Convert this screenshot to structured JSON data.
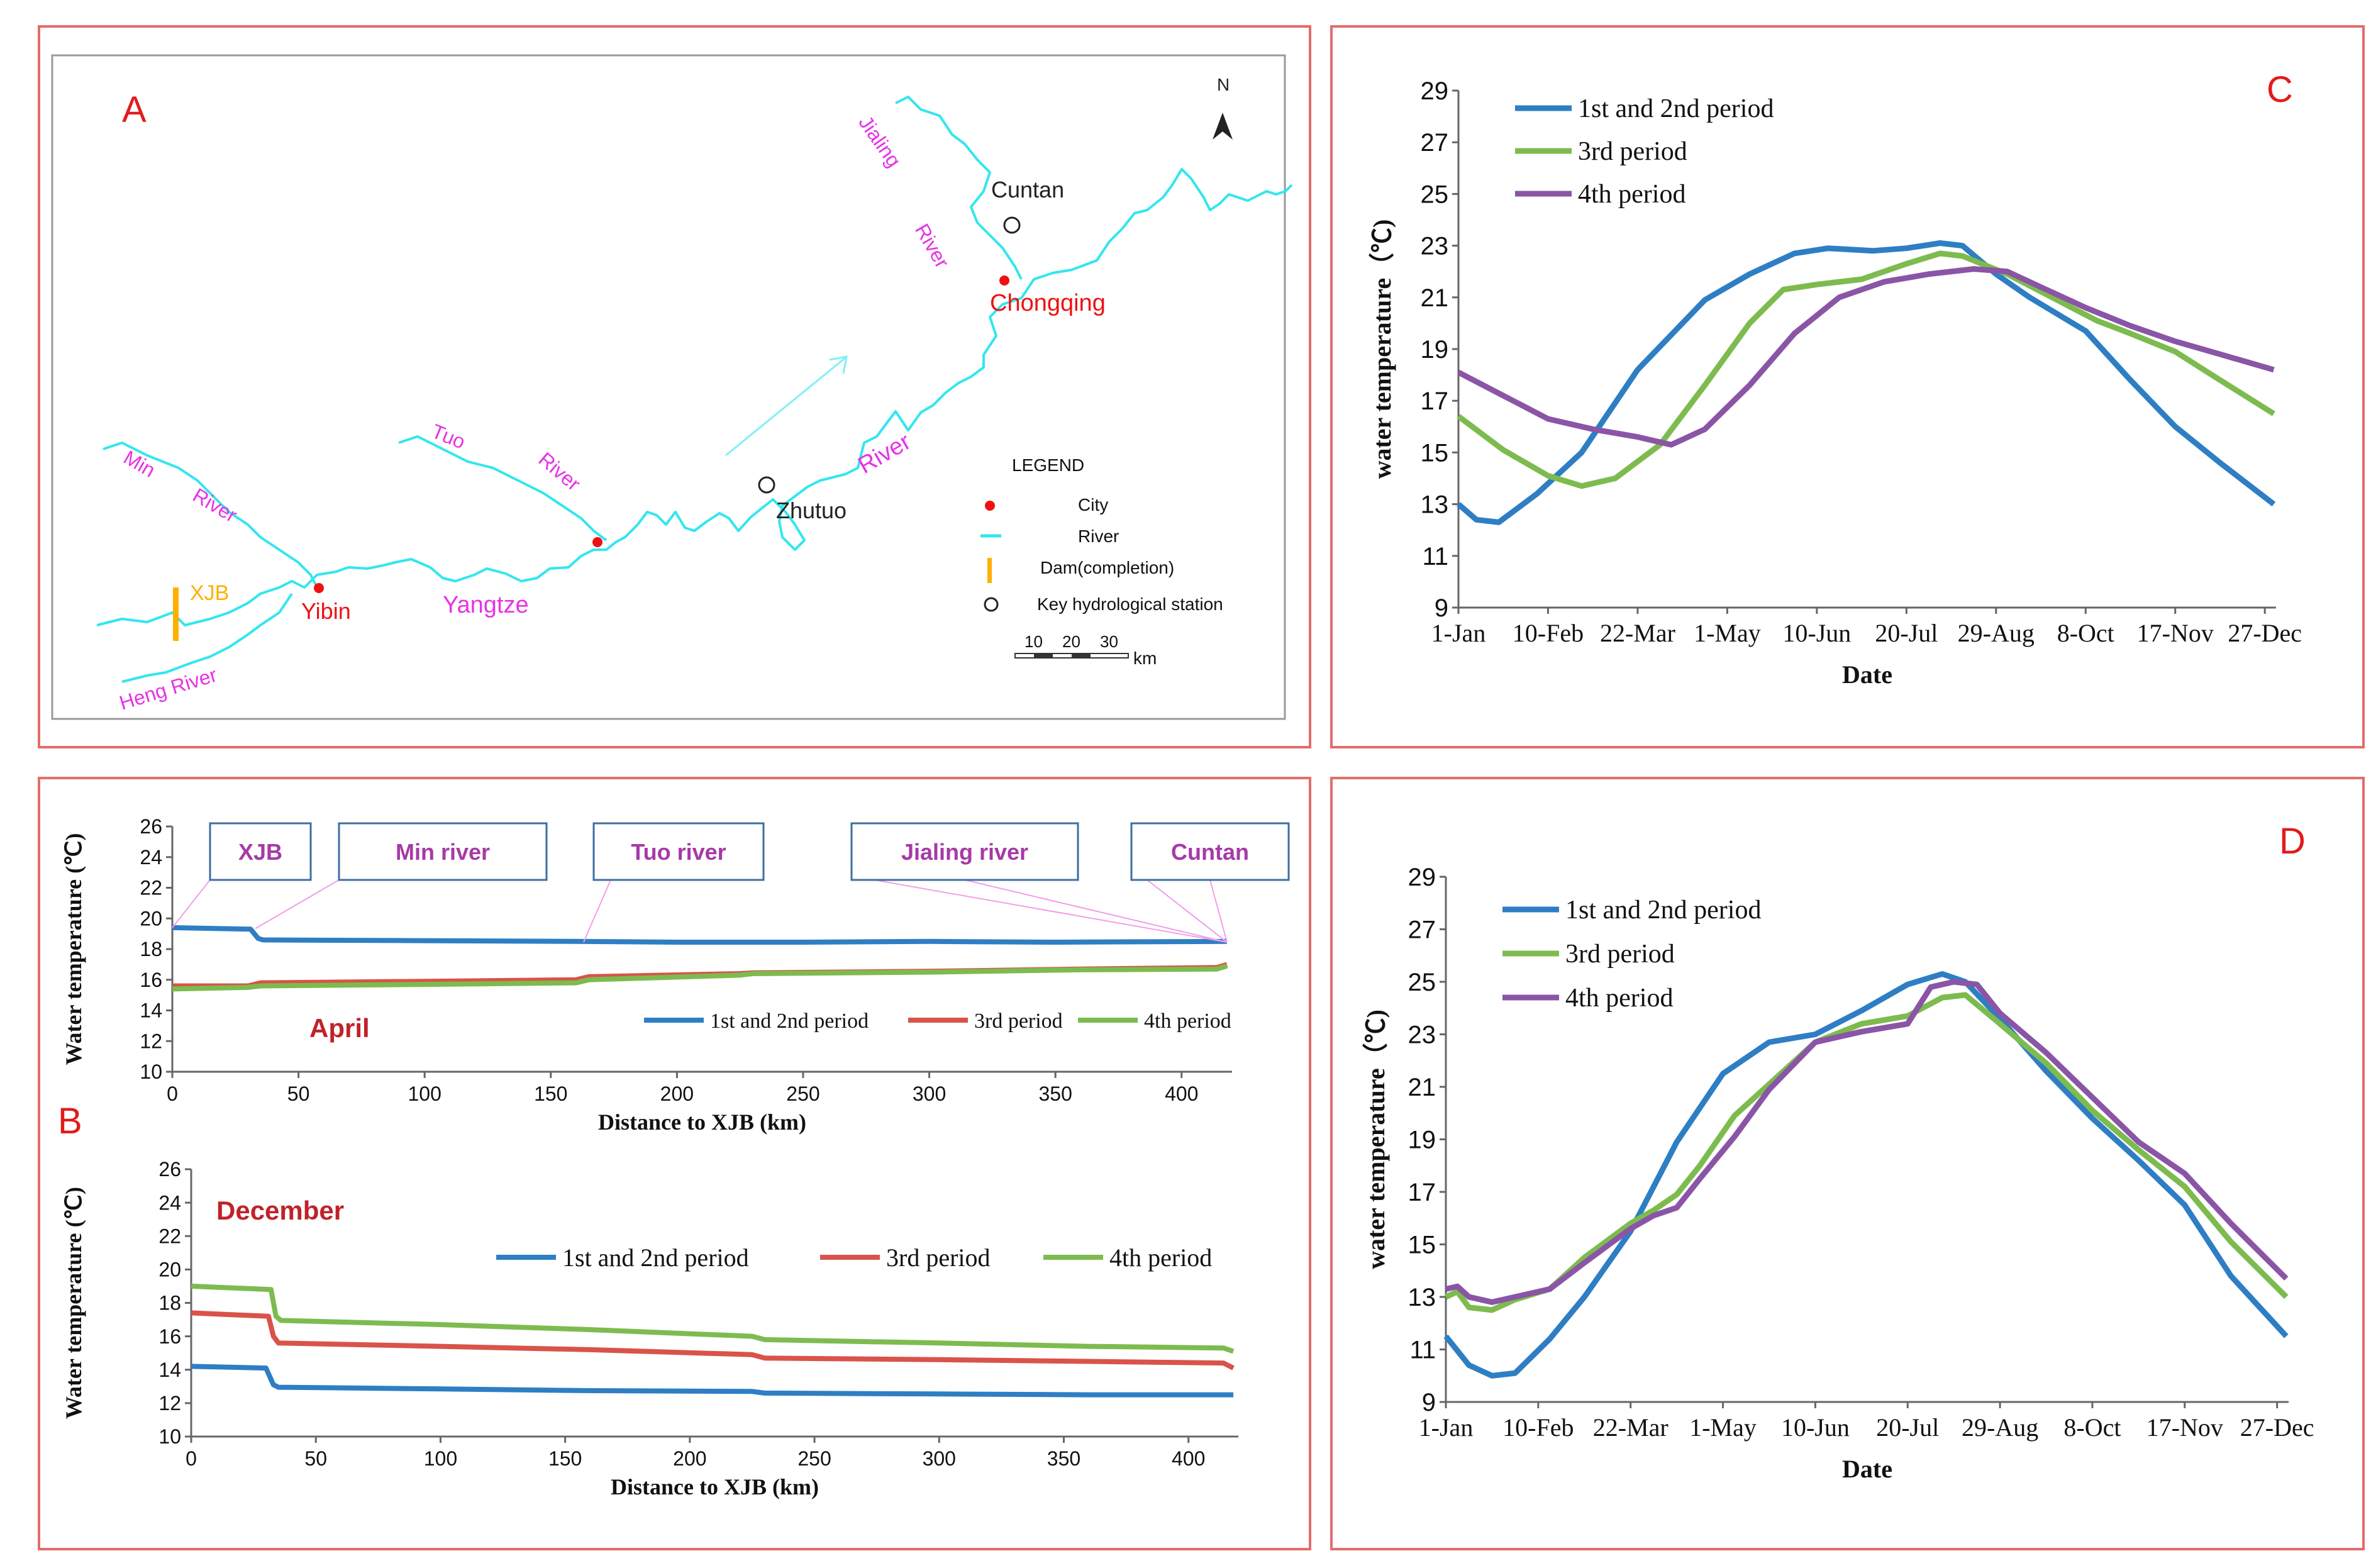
{
  "panels": {
    "A": {
      "letter": "A",
      "north": "N",
      "rivers": {
        "min": "Min",
        "min_river": "River",
        "tuo": "Tuo",
        "tuo_river": "River",
        "jialing": "Jialing",
        "jialing_river": "River",
        "yangtze": "Yangtze",
        "yangtze_river": "River",
        "heng": "Heng River"
      },
      "places": {
        "xjb": "XJB",
        "yibin": "Yibin",
        "chongqing": "Chongqing",
        "cuntan": "Cuntan",
        "zhutuo": "Zhutuo"
      },
      "legend": {
        "title": "LEGEND",
        "items": [
          "City",
          "River",
          "Dam(completion)",
          "Key hydrological station"
        ],
        "scale_ticks": [
          "10",
          "20",
          "30"
        ],
        "scale_unit": "km"
      },
      "colors": {
        "river": "#33e6ef",
        "label": "#e633e6",
        "city": "#ee1111",
        "dam": "#ffb000",
        "title": "#e21b1b"
      }
    },
    "B": {
      "letter": "B"
    },
    "C": {
      "letter": "C"
    },
    "D": {
      "letter": "D"
    }
  },
  "chart_data": [
    {
      "id": "B-april",
      "type": "line",
      "title": "April",
      "xlabel": "Distance to XJB (km)",
      "ylabel": "Water temperature (℃)",
      "xlim": [
        0,
        420
      ],
      "ylim": [
        10,
        26
      ],
      "xticks": [
        0,
        50,
        100,
        150,
        200,
        250,
        300,
        350,
        400
      ],
      "yticks": [
        10,
        12,
        14,
        16,
        18,
        20,
        22,
        24,
        26
      ],
      "annotations": [
        {
          "label": "XJB",
          "x": 0
        },
        {
          "label": "Min river",
          "x": 33
        },
        {
          "label": "Tuo river",
          "x": 163
        },
        {
          "label": "Jialing river",
          "x": 418
        },
        {
          "label": "Cuntan",
          "x": 418
        }
      ],
      "series": [
        {
          "name": "1st and 2nd period",
          "color": "#2e7ec4",
          "x": [
            0,
            31,
            34,
            36,
            100,
            160,
            200,
            250,
            300,
            350,
            418
          ],
          "values": [
            19.4,
            19.3,
            18.7,
            18.6,
            18.55,
            18.5,
            18.45,
            18.45,
            18.5,
            18.45,
            18.5
          ]
        },
        {
          "name": "3rd period",
          "color": "#d9534a",
          "x": [
            0,
            30,
            35,
            100,
            160,
            165,
            225,
            230,
            300,
            360,
            414,
            418
          ],
          "values": [
            15.6,
            15.6,
            15.8,
            15.9,
            16.0,
            16.2,
            16.4,
            16.45,
            16.55,
            16.7,
            16.8,
            17.0
          ]
        },
        {
          "name": "4th period",
          "color": "#7dbb4f",
          "x": [
            0,
            30,
            35,
            100,
            160,
            165,
            225,
            230,
            300,
            360,
            414,
            418
          ],
          "values": [
            15.4,
            15.5,
            15.6,
            15.7,
            15.8,
            16.0,
            16.3,
            16.4,
            16.5,
            16.65,
            16.7,
            16.9
          ]
        }
      ]
    },
    {
      "id": "B-december",
      "type": "line",
      "title": "December",
      "xlabel": "Distance to XJB (km)",
      "ylabel": "Water temperature (℃)",
      "xlim": [
        0,
        420
      ],
      "ylim": [
        10,
        26
      ],
      "xticks": [
        0,
        50,
        100,
        150,
        200,
        250,
        300,
        350,
        400
      ],
      "yticks": [
        10,
        12,
        14,
        16,
        18,
        20,
        22,
        24,
        26
      ],
      "series": [
        {
          "name": "1st and 2nd period",
          "color": "#2e7ec4",
          "x": [
            0,
            30,
            33,
            35,
            100,
            160,
            225,
            230,
            300,
            360,
            418
          ],
          "values": [
            14.2,
            14.1,
            13.1,
            12.95,
            12.85,
            12.75,
            12.7,
            12.6,
            12.55,
            12.5,
            12.5
          ]
        },
        {
          "name": "3rd period",
          "color": "#d9534a",
          "x": [
            0,
            31,
            33,
            35,
            100,
            160,
            225,
            230,
            300,
            360,
            414,
            418
          ],
          "values": [
            17.4,
            17.2,
            16.0,
            15.6,
            15.4,
            15.2,
            14.9,
            14.7,
            14.6,
            14.5,
            14.4,
            14.1
          ]
        },
        {
          "name": "4th period",
          "color": "#7dbb4f",
          "x": [
            0,
            32,
            34,
            36,
            100,
            160,
            225,
            230,
            300,
            360,
            414,
            418
          ],
          "values": [
            19.0,
            18.8,
            17.2,
            16.95,
            16.7,
            16.4,
            16.0,
            15.8,
            15.6,
            15.4,
            15.3,
            15.1
          ]
        }
      ]
    },
    {
      "id": "C",
      "type": "line",
      "title": "",
      "xlabel": "Date",
      "ylabel": "water temperature（℃)",
      "ylim": [
        9,
        29
      ],
      "yticks": [
        9,
        11,
        13,
        15,
        17,
        19,
        21,
        23,
        25,
        27,
        29
      ],
      "categories": [
        "1-Jan",
        "10-Feb",
        "22-Mar",
        "1-May",
        "10-Jun",
        "20-Jul",
        "29-Aug",
        "8-Oct",
        "17-Nov",
        "27-Dec"
      ],
      "x_positions": [
        0,
        40,
        80,
        120,
        160,
        200,
        240,
        280,
        320,
        360
      ],
      "series": [
        {
          "name": "1st and 2nd period",
          "color": "#2e7ec4",
          "x": [
            0,
            8,
            18,
            35,
            55,
            80,
            110,
            130,
            150,
            165,
            185,
            200,
            215,
            225,
            240,
            255,
            280,
            300,
            320,
            340,
            364
          ],
          "values": [
            13.0,
            12.4,
            12.3,
            13.4,
            15.0,
            18.2,
            20.9,
            21.9,
            22.7,
            22.9,
            22.8,
            22.9,
            23.1,
            23.0,
            21.9,
            21.0,
            19.7,
            17.8,
            16.0,
            14.6,
            13.0
          ]
        },
        {
          "name": "3rd period",
          "color": "#7dbb4f",
          "x": [
            0,
            20,
            40,
            55,
            70,
            90,
            110,
            130,
            145,
            160,
            180,
            200,
            215,
            225,
            245,
            265,
            285,
            300,
            320,
            340,
            364
          ],
          "values": [
            16.4,
            15.1,
            14.1,
            13.7,
            14.0,
            15.3,
            17.6,
            20.0,
            21.3,
            21.5,
            21.7,
            22.3,
            22.7,
            22.6,
            21.9,
            21.0,
            20.1,
            19.6,
            18.9,
            17.8,
            16.5
          ]
        },
        {
          "name": "4th period",
          "color": "#8a55a6",
          "x": [
            0,
            20,
            40,
            60,
            80,
            95,
            110,
            130,
            150,
            170,
            190,
            210,
            230,
            245,
            260,
            280,
            300,
            320,
            340,
            364
          ],
          "values": [
            18.1,
            17.2,
            16.3,
            15.9,
            15.6,
            15.3,
            15.9,
            17.6,
            19.6,
            21.0,
            21.6,
            21.9,
            22.1,
            22.0,
            21.4,
            20.6,
            19.9,
            19.3,
            18.8,
            18.2
          ]
        }
      ],
      "legend_position": "top-left"
    },
    {
      "id": "D",
      "type": "line",
      "title": "",
      "xlabel": "Date",
      "ylabel": "water temperature（℃)",
      "ylim": [
        9,
        29
      ],
      "yticks": [
        9,
        11,
        13,
        15,
        17,
        19,
        21,
        23,
        25,
        27,
        29
      ],
      "categories": [
        "1-Jan",
        "10-Feb",
        "22-Mar",
        "1-May",
        "10-Jun",
        "20-Jul",
        "29-Aug",
        "8-Oct",
        "17-Nov",
        "27-Dec"
      ],
      "x_positions": [
        0,
        40,
        80,
        120,
        160,
        200,
        240,
        280,
        320,
        360
      ],
      "series": [
        {
          "name": "1st and 2nd period",
          "color": "#2e7ec4",
          "x": [
            0,
            10,
            20,
            30,
            45,
            60,
            80,
            100,
            120,
            140,
            160,
            180,
            200,
            215,
            225,
            240,
            260,
            280,
            300,
            320,
            340,
            364
          ],
          "values": [
            11.5,
            10.4,
            10.0,
            10.1,
            11.4,
            13.0,
            15.5,
            18.9,
            21.5,
            22.7,
            23.0,
            23.9,
            24.9,
            25.3,
            25.0,
            23.6,
            21.6,
            19.8,
            18.2,
            16.5,
            13.8,
            11.5
          ]
        },
        {
          "name": "3rd period",
          "color": "#7dbb4f",
          "x": [
            0,
            5,
            10,
            20,
            30,
            45,
            60,
            80,
            90,
            100,
            110,
            125,
            140,
            160,
            180,
            200,
            215,
            225,
            240,
            260,
            280,
            300,
            320,
            340,
            364
          ],
          "values": [
            13.0,
            13.2,
            12.6,
            12.5,
            12.9,
            13.3,
            14.5,
            15.8,
            16.3,
            16.9,
            18.0,
            19.9,
            21.1,
            22.7,
            23.4,
            23.7,
            24.4,
            24.5,
            23.4,
            21.9,
            20.1,
            18.6,
            17.2,
            15.1,
            13.0
          ]
        },
        {
          "name": "4th period",
          "color": "#8a55a6",
          "x": [
            0,
            5,
            10,
            20,
            30,
            45,
            60,
            80,
            90,
            100,
            110,
            125,
            140,
            160,
            180,
            200,
            210,
            220,
            230,
            240,
            260,
            280,
            300,
            320,
            340,
            364
          ],
          "values": [
            13.3,
            13.4,
            13.0,
            12.8,
            13.0,
            13.3,
            14.3,
            15.6,
            16.1,
            16.4,
            17.5,
            19.1,
            20.9,
            22.7,
            23.1,
            23.4,
            24.8,
            25.0,
            24.9,
            23.8,
            22.3,
            20.6,
            18.9,
            17.7,
            15.8,
            13.7
          ]
        }
      ],
      "legend_position": "top-left"
    }
  ]
}
